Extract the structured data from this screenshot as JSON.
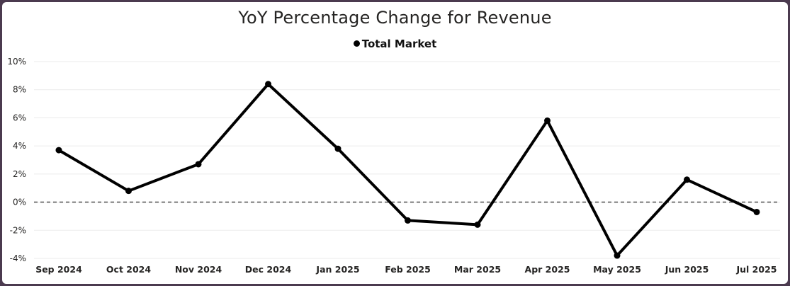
{
  "chart_data": {
    "type": "line",
    "title": "YoY Percentage Change for Revenue",
    "xlabel": "",
    "ylabel": "",
    "categories": [
      "Sep 2024",
      "Oct 2024",
      "Nov 2024",
      "Dec 2024",
      "Jan 2025",
      "Feb 2025",
      "Mar 2025",
      "Apr 2025",
      "May 2025",
      "Jun 2025",
      "Jul 2025"
    ],
    "series": [
      {
        "name": "Total Market",
        "color": "#000000",
        "values": [
          3.7,
          0.8,
          2.7,
          8.4,
          3.8,
          -1.3,
          -1.6,
          5.8,
          -3.8,
          1.6,
          -0.7
        ]
      }
    ],
    "ylim": [
      -4,
      10
    ],
    "yticks": [
      10,
      8,
      6,
      4,
      2,
      0,
      -2,
      -4
    ],
    "ytick_labels": [
      "10%",
      "8%",
      "6%",
      "4%",
      "2%",
      "0%",
      "-2%",
      "-4%"
    ],
    "reference_line": {
      "value": 0,
      "style": "dashed",
      "color": "#7a7a7a"
    },
    "grid": true,
    "legend_position": "top-center"
  }
}
